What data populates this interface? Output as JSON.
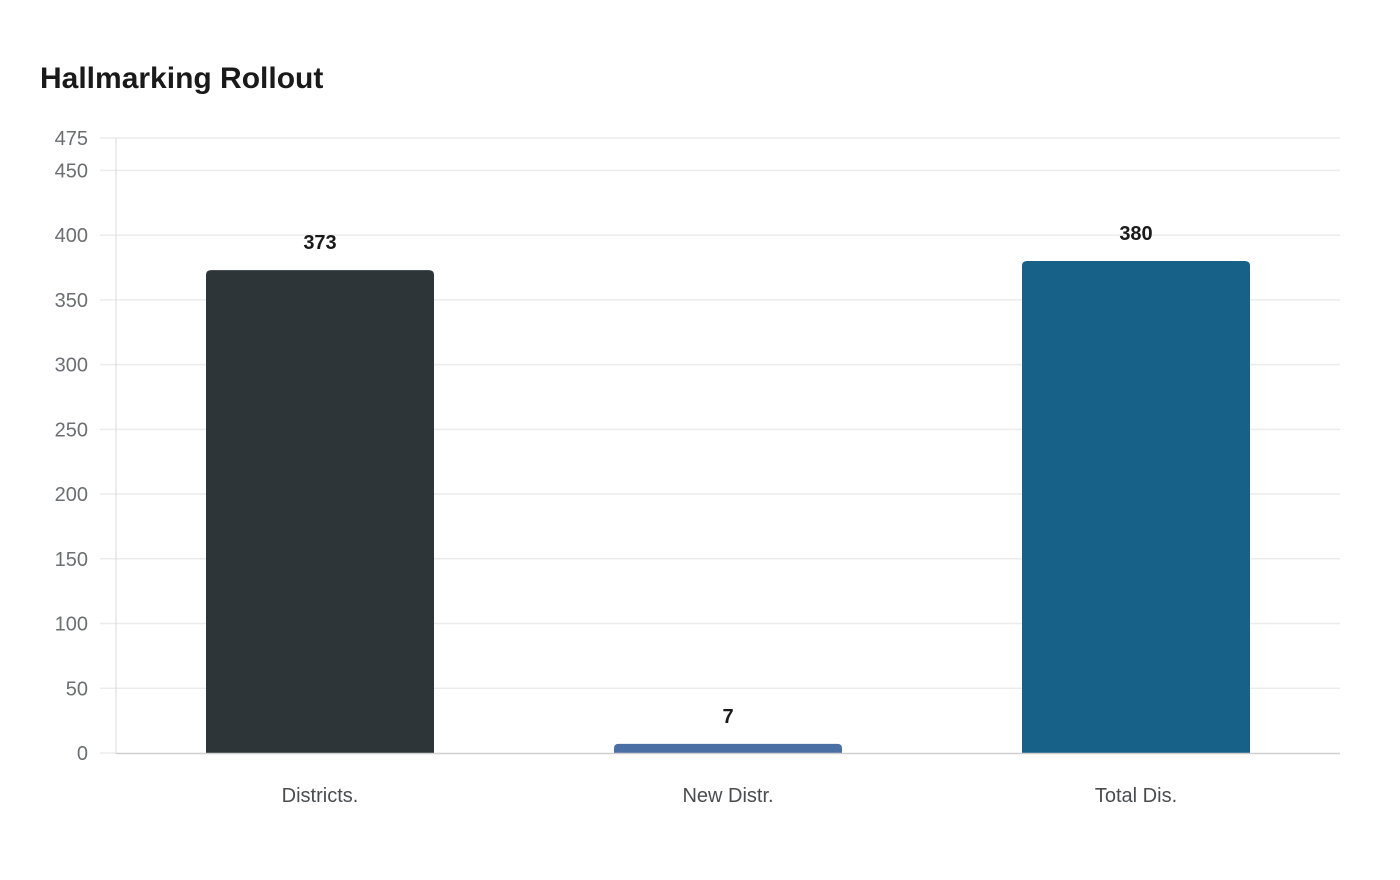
{
  "title": "Hallmarking Rollout",
  "chart_data": {
    "type": "bar",
    "title": "Hallmarking Rollout",
    "xlabel": "",
    "ylabel": "",
    "categories": [
      "Districts.",
      "New Distr.",
      "Total Dis."
    ],
    "values": [
      373,
      7,
      380
    ],
    "colors": [
      "#2d3538",
      "#4a6fa5",
      "#176087"
    ],
    "ylim": [
      0,
      475
    ],
    "yticks": [
      0,
      50,
      100,
      150,
      200,
      250,
      300,
      350,
      400,
      450,
      475
    ],
    "grid": true,
    "legend": null,
    "data_labels": true
  }
}
